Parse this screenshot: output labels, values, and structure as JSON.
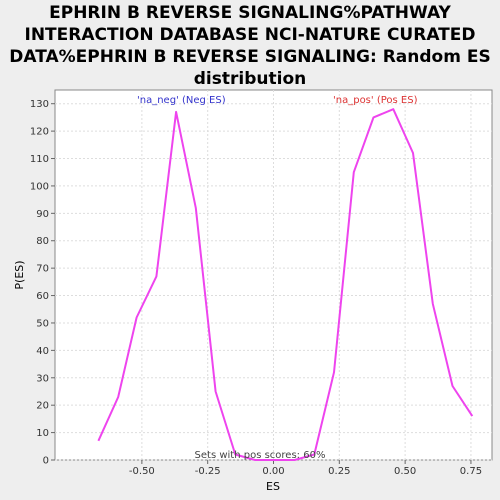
{
  "chart_data": {
    "type": "line",
    "title_lines": [
      "EPHRIN B REVERSE SIGNALING%PATHWAY",
      "INTERACTION DATABASE NCI-NATURE CURATED",
      "DATA%EPHRIN B REVERSE SIGNALING: Random ES",
      "distribution"
    ],
    "xlabel": "ES",
    "ylabel": "P(ES)",
    "xlim": [
      -0.83,
      0.83
    ],
    "ylim": [
      0,
      135
    ],
    "xticks": [
      -0.5,
      -0.25,
      0.0,
      0.25,
      0.5,
      0.75
    ],
    "xtick_labels": [
      "-0.50",
      "-0.25",
      "0.00",
      "0.25",
      "0.50",
      "0.75"
    ],
    "yticks": [
      0,
      10,
      20,
      30,
      40,
      50,
      60,
      70,
      80,
      90,
      100,
      110,
      120,
      130
    ],
    "ytick_labels": [
      "0",
      "10",
      "20",
      "30",
      "40",
      "50",
      "60",
      "70",
      "80",
      "90",
      "100",
      "110",
      "120",
      "130"
    ],
    "grid": true,
    "line_color": "#ee44ee",
    "series": [
      {
        "x": [
          -0.665,
          -0.59,
          -0.52,
          -0.445,
          -0.37,
          -0.295,
          -0.22,
          -0.145,
          -0.07,
          0.005,
          0.08,
          0.155,
          0.23,
          0.305,
          0.38,
          0.455,
          0.53,
          0.605,
          0.68,
          0.755
        ],
        "values": [
          7,
          23,
          52,
          67,
          127,
          92,
          25,
          2,
          0,
          0,
          0,
          2,
          32,
          105,
          125,
          128,
          112,
          57,
          27,
          16
        ]
      }
    ],
    "annotations": {
      "neg_label": "'na_neg' (Neg ES)",
      "neg_color": "#3333cc",
      "pos_label": "'na_pos' (Pos ES)",
      "pos_color": "#dd3333",
      "footer": "Sets with pos scores: 60%"
    }
  }
}
